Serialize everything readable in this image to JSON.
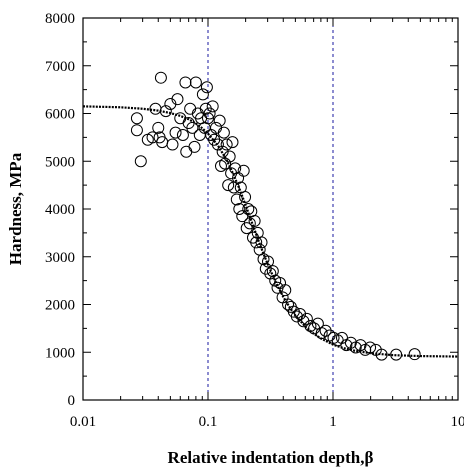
{
  "chart_data": {
    "type": "scatter",
    "xlabel": "Relative indentation depth,β",
    "ylabel": "Hardness, MPa",
    "xscale": "log",
    "xlim": [
      0.01,
      10
    ],
    "ylim": [
      0,
      8000
    ],
    "x_ticks": [
      0.01,
      0.1,
      1,
      10
    ],
    "x_tick_labels": [
      "0.01",
      "0.1",
      "1",
      "10"
    ],
    "y_ticks": [
      0,
      1000,
      2000,
      3000,
      4000,
      5000,
      6000,
      7000,
      8000
    ],
    "y_tick_labels": [
      "0",
      "1000",
      "2000",
      "3000",
      "4000",
      "5000",
      "6000",
      "7000",
      "8000"
    ],
    "reference_lines_x": [
      0.1,
      1
    ],
    "reference_line_color": "#1a1aa0",
    "marker_color": "#000000",
    "series": [
      {
        "kind": "points",
        "marker": "open-circle",
        "points": [
          [
            0.027,
            5900
          ],
          [
            0.027,
            5650
          ],
          [
            0.029,
            5000
          ],
          [
            0.033,
            5450
          ],
          [
            0.036,
            5500
          ],
          [
            0.038,
            6100
          ],
          [
            0.04,
            5700
          ],
          [
            0.041,
            5500
          ],
          [
            0.042,
            6750
          ],
          [
            0.043,
            5400
          ],
          [
            0.046,
            6050
          ],
          [
            0.05,
            6200
          ],
          [
            0.052,
            5350
          ],
          [
            0.055,
            5600
          ],
          [
            0.057,
            6300
          ],
          [
            0.06,
            5900
          ],
          [
            0.063,
            5550
          ],
          [
            0.066,
            6650
          ],
          [
            0.067,
            5200
          ],
          [
            0.07,
            5800
          ],
          [
            0.072,
            6100
          ],
          [
            0.075,
            5700
          ],
          [
            0.078,
            5300
          ],
          [
            0.08,
            6650
          ],
          [
            0.083,
            6000
          ],
          [
            0.086,
            5550
          ],
          [
            0.088,
            5900
          ],
          [
            0.091,
            6400
          ],
          [
            0.094,
            5700
          ],
          [
            0.096,
            6100
          ],
          [
            0.098,
            6550
          ],
          [
            0.1,
            5900
          ],
          [
            0.103,
            6000
          ],
          [
            0.106,
            5550
          ],
          [
            0.109,
            6150
          ],
          [
            0.112,
            5450
          ],
          [
            0.116,
            5700
          ],
          [
            0.12,
            5350
          ],
          [
            0.124,
            5850
          ],
          [
            0.127,
            4900
          ],
          [
            0.131,
            5200
          ],
          [
            0.134,
            5600
          ],
          [
            0.137,
            4950
          ],
          [
            0.141,
            5350
          ],
          [
            0.145,
            4500
          ],
          [
            0.149,
            5100
          ],
          [
            0.153,
            4750
          ],
          [
            0.157,
            5400
          ],
          [
            0.161,
            4450
          ],
          [
            0.165,
            4850
          ],
          [
            0.17,
            4200
          ],
          [
            0.174,
            4650
          ],
          [
            0.178,
            4000
          ],
          [
            0.183,
            4450
          ],
          [
            0.188,
            3850
          ],
          [
            0.193,
            4800
          ],
          [
            0.198,
            4250
          ],
          [
            0.204,
            3600
          ],
          [
            0.21,
            4000
          ],
          [
            0.216,
            3700
          ],
          [
            0.222,
            3950
          ],
          [
            0.229,
            3400
          ],
          [
            0.236,
            3750
          ],
          [
            0.243,
            3300
          ],
          [
            0.25,
            3500
          ],
          [
            0.259,
            3150
          ],
          [
            0.268,
            3300
          ],
          [
            0.278,
            2950
          ],
          [
            0.29,
            2750
          ],
          [
            0.302,
            2900
          ],
          [
            0.315,
            2650
          ],
          [
            0.33,
            2700
          ],
          [
            0.345,
            2500
          ],
          [
            0.36,
            2350
          ],
          [
            0.377,
            2450
          ],
          [
            0.395,
            2150
          ],
          [
            0.415,
            2300
          ],
          [
            0.437,
            2000
          ],
          [
            0.46,
            1950
          ],
          [
            0.486,
            1850
          ],
          [
            0.514,
            1750
          ],
          [
            0.545,
            1800
          ],
          [
            0.58,
            1650
          ],
          [
            0.618,
            1700
          ],
          [
            0.66,
            1550
          ],
          [
            0.706,
            1500
          ],
          [
            0.757,
            1600
          ],
          [
            0.812,
            1400
          ],
          [
            0.873,
            1450
          ],
          [
            0.94,
            1350
          ],
          [
            1.01,
            1300
          ],
          [
            1.09,
            1250
          ],
          [
            1.18,
            1300
          ],
          [
            1.28,
            1150
          ],
          [
            1.39,
            1200
          ],
          [
            1.52,
            1100
          ],
          [
            1.66,
            1150
          ],
          [
            1.81,
            1050
          ],
          [
            1.98,
            1100
          ],
          [
            2.2,
            1050
          ],
          [
            2.45,
            950
          ],
          [
            3.2,
            950
          ],
          [
            4.5,
            960
          ]
        ]
      },
      {
        "kind": "curve",
        "points": [
          [
            0.01,
            6150
          ],
          [
            0.02,
            6130
          ],
          [
            0.03,
            6100
          ],
          [
            0.04,
            6060
          ],
          [
            0.05,
            6010
          ],
          [
            0.06,
            5950
          ],
          [
            0.07,
            5880
          ],
          [
            0.08,
            5790
          ],
          [
            0.09,
            5690
          ],
          [
            0.1,
            5580
          ],
          [
            0.12,
            5330
          ],
          [
            0.14,
            5040
          ],
          [
            0.16,
            4720
          ],
          [
            0.18,
            4400
          ],
          [
            0.2,
            4080
          ],
          [
            0.22,
            3780
          ],
          [
            0.25,
            3380
          ],
          [
            0.28,
            3040
          ],
          [
            0.32,
            2680
          ],
          [
            0.36,
            2390
          ],
          [
            0.4,
            2160
          ],
          [
            0.45,
            1940
          ],
          [
            0.5,
            1770
          ],
          [
            0.6,
            1540
          ],
          [
            0.7,
            1390
          ],
          [
            0.8,
            1290
          ],
          [
            1.0,
            1160
          ],
          [
            1.2,
            1090
          ],
          [
            1.5,
            1030
          ],
          [
            2.0,
            980
          ],
          [
            3.0,
            940
          ],
          [
            5.0,
            920
          ],
          [
            10.0,
            910
          ]
        ]
      }
    ]
  }
}
